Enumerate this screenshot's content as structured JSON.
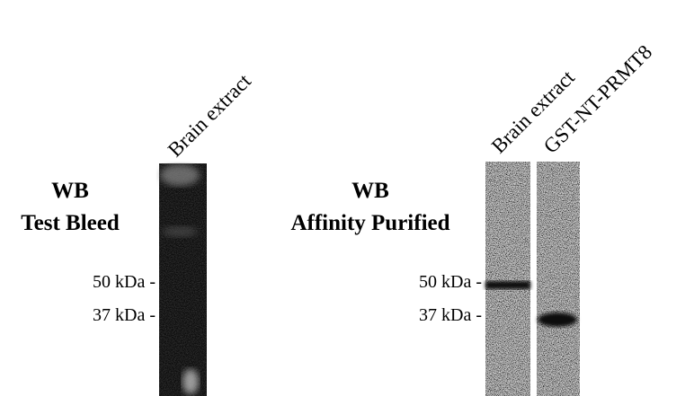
{
  "panels": [
    {
      "title": "WB",
      "subtitle": "Test Bleed",
      "lanes": [
        "Brain extract"
      ],
      "markers": [
        "50 kDa -",
        "37 kDa -"
      ]
    },
    {
      "title": "WB",
      "subtitle": "Affinity Purified",
      "lanes": [
        "Brain extract",
        "GST-NT-PRMT8"
      ],
      "markers": [
        "50 kDa -",
        "37 kDa -"
      ]
    }
  ]
}
